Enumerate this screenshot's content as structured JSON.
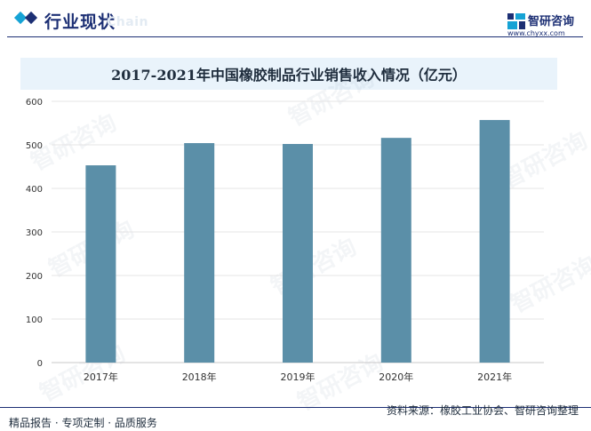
{
  "header": {
    "section_title": "行业现状",
    "section_subtitle": "Chain",
    "brand_name": "智研咨询",
    "brand_url": "www.chyxx.com",
    "watermark": "智研咨询"
  },
  "chart_data": {
    "type": "bar",
    "title": "2017-2021年中国橡胶制品行业销售收入情况（亿元）",
    "categories": [
      "2017年",
      "2018年",
      "2019年",
      "2020年",
      "2021年"
    ],
    "values": [
      453,
      504,
      502,
      516,
      557
    ],
    "ylim": [
      0,
      600
    ],
    "yticks": [
      0,
      100,
      200,
      300,
      400,
      500,
      600
    ],
    "xlabel": "",
    "ylabel": "",
    "grid": true,
    "bar_color": "#5b8fa8"
  },
  "footer": {
    "left_text": "精品报告 · 专项定制 · 品质服务",
    "source_text": "资料来源：橡胶工业协会、智研咨询整理"
  }
}
